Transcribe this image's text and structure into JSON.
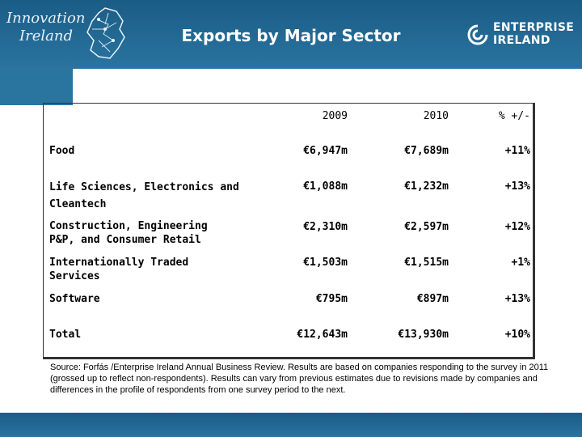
{
  "header": {
    "title": "Exports by Major Sector",
    "left_logo": [
      "Innovation",
      "Ireland"
    ],
    "right_logo": [
      "ENTERPRISE",
      "IRELAND"
    ]
  },
  "table": {
    "columns": [
      "",
      "2009",
      "2010",
      "% +/-"
    ],
    "rows": [
      {
        "label": "Food",
        "v2009": "€6,947m",
        "v2010": "€7,689m",
        "change": "+11%"
      },
      {
        "label": "Life Sciences, Electronics and Cleantech",
        "v2009": "€1,088m",
        "v2010": "€1,232m",
        "change": "+13%"
      },
      {
        "label": "Construction, Engineering P&P, and Consumer Retail",
        "v2009": "€2,310m",
        "v2010": "€2,597m",
        "change": "+12%"
      },
      {
        "label": "Internationally Traded Services",
        "v2009": "€1,503m",
        "v2010": "€1,515m",
        "change": "+1%"
      },
      {
        "label": "Software",
        "v2009": "€795m",
        "v2010": "€897m",
        "change": "+13%"
      },
      {
        "label": "Total",
        "v2009": "€12,643m",
        "v2010": "€13,930m",
        "change": "+10%"
      }
    ]
  },
  "source_note": "Source: Forfás /Enterprise Ireland Annual Business Review.  Results are based on companies responding to the survey in 2011 (grossed up to reflect non-respondents). Results can vary from previous estimates due to revisions made by companies and differences in the profile of respondents from one survey period to the next.",
  "colors": {
    "header_blue": "#1f6590",
    "text": "#000000"
  }
}
